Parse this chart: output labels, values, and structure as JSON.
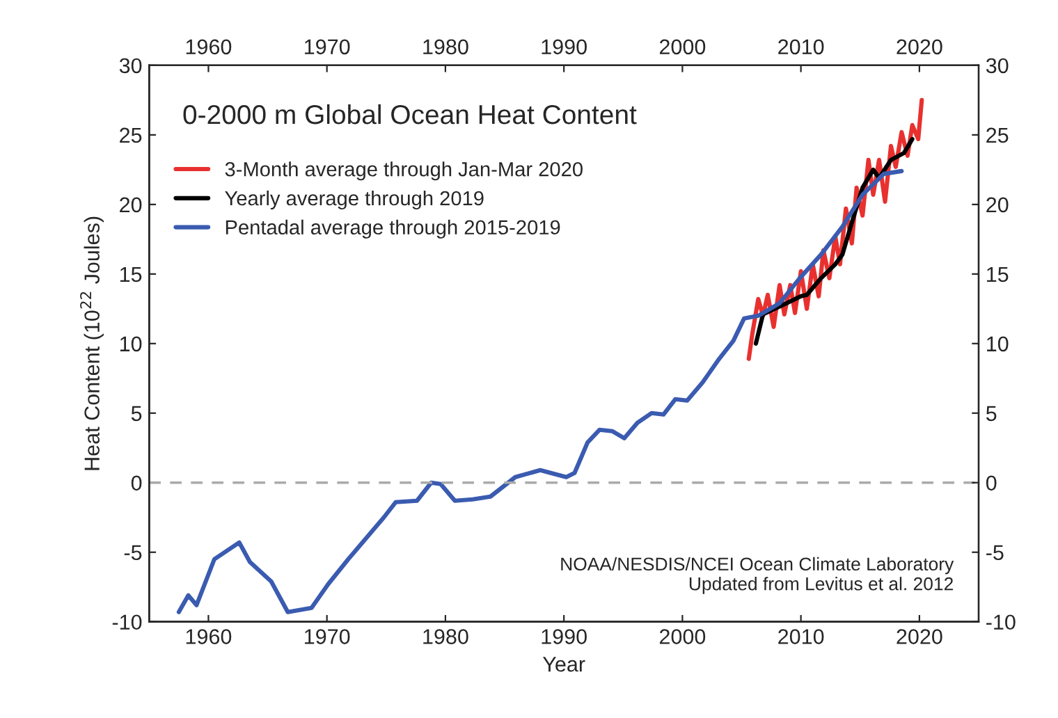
{
  "chart_data": {
    "type": "line",
    "title": "0-2000 m Global Ocean Heat Content",
    "xlabel": "Year",
    "ylabel": "Heat Content (10$^{22}$ Joules)",
    "xlim": [
      1955,
      2025
    ],
    "xticks": [
      1960,
      1970,
      1980,
      1990,
      2000,
      2010,
      2020
    ],
    "x2lim": [
      1955,
      2025
    ],
    "x2ticks": [
      1960,
      1970,
      1980,
      1990,
      2000,
      2010,
      2020
    ],
    "ylim": [
      -10,
      30
    ],
    "yticks": [
      -10,
      -5,
      0,
      5,
      10,
      15,
      20,
      25,
      30
    ],
    "y2lim": [
      -10,
      30
    ],
    "y2ticks": [
      -10,
      -5,
      0,
      5,
      10,
      15,
      20,
      25,
      30
    ],
    "legend": "top left",
    "grid": false,
    "series": [
      {
        "name": "3-Month average through Jan-Mar 2020",
        "color": "#e8312f",
        "x": [
          2005.6,
          2005.9,
          2006.4,
          2006.8,
          2007.2,
          2007.7,
          2008.2,
          2008.6,
          2009.1,
          2009.5,
          2010.0,
          2010.5,
          2011.0,
          2011.5,
          2011.9,
          2012.4,
          2012.9,
          2013.3,
          2013.8,
          2014.3,
          2014.7,
          2015.2,
          2015.7,
          2016.1,
          2016.6,
          2017.1,
          2017.6,
          2018.0,
          2018.5,
          2019.0,
          2019.4,
          2019.9,
          2020.2
        ],
        "values": [
          8.9,
          10.7,
          13.2,
          12.0,
          13.5,
          11.2,
          14.2,
          12.1,
          14.2,
          12.2,
          15.2,
          12.5,
          15.7,
          13.4,
          16.7,
          14.7,
          17.7,
          15.7,
          19.7,
          17.2,
          21.2,
          19.2,
          23.2,
          20.7,
          23.2,
          20.2,
          24.2,
          22.7,
          25.2,
          23.5,
          25.7,
          24.7,
          27.5
        ]
      },
      {
        "name": "Yearly average through 2019",
        "color": "#000000",
        "x": [
          2006.2,
          2006.8,
          2007.8,
          2008.8,
          2010.0,
          2010.5,
          2011.7,
          2012.9,
          2013.5,
          2014.3,
          2015.2,
          2016.1,
          2016.6,
          2017.6,
          2018.7,
          2019.4
        ],
        "values": [
          10.0,
          12.1,
          12.5,
          12.9,
          13.4,
          13.5,
          14.7,
          15.7,
          16.4,
          18.7,
          21.2,
          22.5,
          21.9,
          23.2,
          23.7,
          24.7
        ]
      },
      {
        "name": "Pentadal average through 2015-2019",
        "color": "#3a5bb0",
        "x": [
          1957.5,
          1958.3,
          1959.0,
          1960.5,
          1962.6,
          1963.5,
          1965.3,
          1966.7,
          1968.7,
          1970.1,
          1971.8,
          1973.5,
          1974.8,
          1975.8,
          1977.6,
          1978.8,
          1979.6,
          1980.8,
          1982.3,
          1983.8,
          1985.9,
          1988.0,
          1990.2,
          1990.9,
          1992.0,
          1993.0,
          1994.1,
          1995.1,
          1996.2,
          1997.4,
          1998.4,
          1999.4,
          2000.4,
          2001.7,
          2003.1,
          2004.3,
          2005.2,
          2006.4,
          2008.2,
          2009.9,
          2011.7,
          2013.5,
          2015.2,
          2017.0,
          2018.5
        ],
        "values": [
          -9.3,
          -8.1,
          -8.8,
          -5.5,
          -4.3,
          -5.7,
          -7.1,
          -9.3,
          -9.0,
          -7.3,
          -5.5,
          -3.8,
          -2.5,
          -1.4,
          -1.3,
          0.0,
          -0.1,
          -1.3,
          -1.2,
          -1.0,
          0.4,
          0.9,
          0.4,
          0.7,
          2.9,
          3.8,
          3.7,
          3.2,
          4.3,
          5.0,
          4.9,
          6.0,
          5.9,
          7.2,
          8.9,
          10.2,
          11.8,
          12.0,
          12.9,
          14.7,
          16.4,
          18.4,
          20.7,
          22.2,
          22.4
        ]
      }
    ],
    "ref_lines": [
      {
        "axis": "y",
        "value": 0,
        "color": "#aaaaaa",
        "line_style": "dashed"
      }
    ],
    "annotations": [
      "NOAA/NESDIS/NCEI Ocean Climate Laboratory\nUpdated from Levitus et al. 2012"
    ]
  }
}
